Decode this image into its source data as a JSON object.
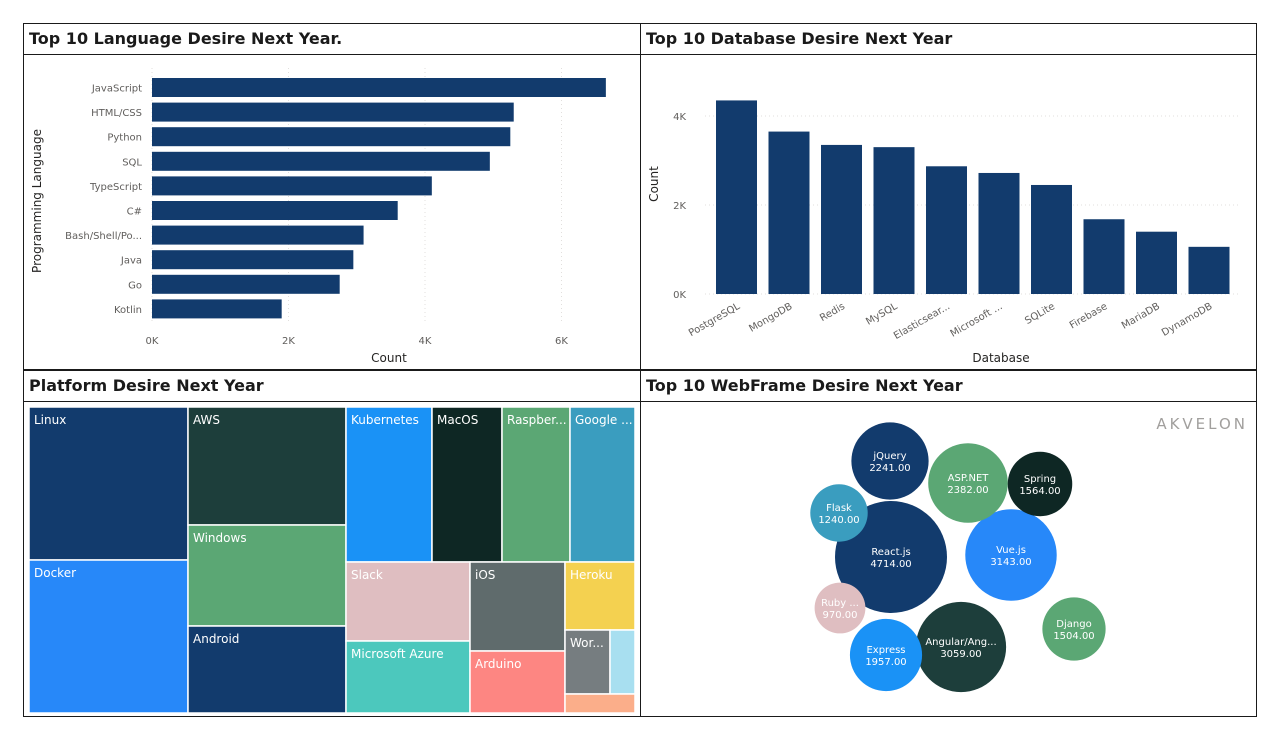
{
  "brand": {
    "logo_text": "AKVELON"
  },
  "language_chart": {
    "title": "Top 10 Language Desire Next Year.",
    "chart_data": {
      "type": "bar",
      "orientation": "horizontal",
      "categories": [
        "JavaScript",
        "HTML/CSS",
        "Python",
        "SQL",
        "TypeScript",
        "C#",
        "Bash/Shell/Po...",
        "Java",
        "Go",
        "Kotlin"
      ],
      "values": [
        6650,
        5300,
        5250,
        4950,
        4100,
        3600,
        3100,
        2950,
        2750,
        1900
      ],
      "xlabel": "Count",
      "ylabel": "Programming Language",
      "xlim": [
        0,
        7000
      ],
      "x_ticks": [
        0,
        2000,
        4000,
        6000
      ],
      "x_tick_labels": [
        "0K",
        "2K",
        "4K",
        "6K"
      ],
      "grid": true,
      "color": "#123b6d"
    }
  },
  "database_chart": {
    "title": "Top 10 Database Desire Next Year",
    "chart_data": {
      "type": "bar",
      "orientation": "vertical",
      "categories": [
        "PostgreSQL",
        "MongoDB",
        "Redis",
        "MySQL",
        "Elasticsear...",
        "Microsoft ...",
        "SQLite",
        "Firebase",
        "MariaDB",
        "DynamoDB"
      ],
      "values": [
        4350,
        3650,
        3350,
        3300,
        2870,
        2720,
        2450,
        1680,
        1400,
        1060
      ],
      "xlabel": "Database",
      "ylabel": "Count",
      "ylim": [
        0,
        4600
      ],
      "y_ticks": [
        0,
        2000,
        4000
      ],
      "y_tick_labels": [
        "0K",
        "2K",
        "4K"
      ],
      "grid": true,
      "color": "#123b6d"
    }
  },
  "platform_chart": {
    "title": "Platform Desire Next Year",
    "chart_data": {
      "type": "treemap",
      "items": [
        {
          "label": "Linux",
          "color": "#123b6d"
        },
        {
          "label": "Docker",
          "color": "#2788f9"
        },
        {
          "label": "AWS",
          "color": "#1d3e3b"
        },
        {
          "label": "Windows",
          "color": "#5ba774"
        },
        {
          "label": "Android",
          "color": "#123b6d"
        },
        {
          "label": "Kubernetes",
          "color": "#1a92f6"
        },
        {
          "label": "MacOS",
          "color": "#0e2724"
        },
        {
          "label": "Raspber...",
          "color": "#5ba774"
        },
        {
          "label": "Google ...",
          "color": "#3a9dbf"
        },
        {
          "label": "Slack",
          "color": "#dfbec1"
        },
        {
          "label": "Microsoft Azure",
          "color": "#4cc8bd"
        },
        {
          "label": "iOS",
          "color": "#5f6b6c"
        },
        {
          "label": "Arduino",
          "color": "#fd8682"
        },
        {
          "label": "Heroku",
          "color": "#f4d150"
        },
        {
          "label": "Wor...",
          "color": "#767d80"
        },
        {
          "label": "",
          "color": "#a8dff0"
        },
        {
          "label": "",
          "color": "#fbae8a"
        }
      ]
    }
  },
  "webframe_chart": {
    "title": "Top 10 WebFrame Desire Next Year",
    "chart_data": {
      "type": "bubble",
      "items": [
        {
          "label": "React.js",
          "value": 4714,
          "value_label": "4714.00",
          "color": "#123b6d"
        },
        {
          "label": "Vue.js",
          "value": 3143,
          "value_label": "3143.00",
          "color": "#2788f9"
        },
        {
          "label": "Angular/Ang...",
          "value": 3059,
          "value_label": "3059.00",
          "color": "#1d3e3b"
        },
        {
          "label": "ASP.NET",
          "value": 2382,
          "value_label": "2382.00",
          "color": "#5ba774"
        },
        {
          "label": "jQuery",
          "value": 2241,
          "value_label": "2241.00",
          "color": "#123b6d"
        },
        {
          "label": "Express",
          "value": 1957,
          "value_label": "1957.00",
          "color": "#1a92f6"
        },
        {
          "label": "Spring",
          "value": 1564,
          "value_label": "1564.00",
          "color": "#0e2724"
        },
        {
          "label": "Django",
          "value": 1504,
          "value_label": "1504.00",
          "color": "#5ba774"
        },
        {
          "label": "Flask",
          "value": 1240,
          "value_label": "1240.00",
          "color": "#3a9dbf"
        },
        {
          "label": "Ruby ...",
          "value": 970,
          "value_label": "970.00",
          "color": "#dfbec1"
        }
      ]
    }
  }
}
